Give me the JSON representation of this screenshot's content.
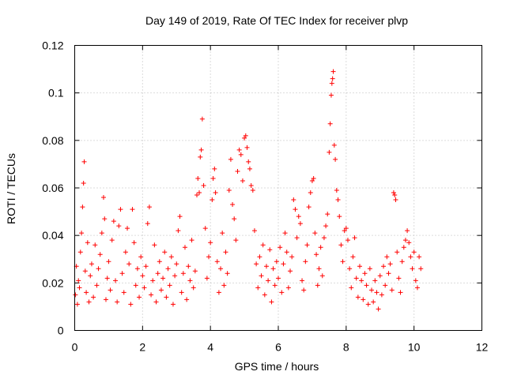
{
  "chart_data": {
    "type": "scatter",
    "title": "Day 149 of 2019, Rate Of TEC Index for receiver plvp",
    "xlabel": "GPS time / hours",
    "ylabel": "ROTI / TECUs",
    "xlim": [
      0,
      12
    ],
    "ylim": [
      0,
      0.12
    ],
    "grid": true,
    "marker": "plus",
    "color": "#ff0000",
    "x_ticks": [
      {
        "value": 0,
        "label": "0"
      },
      {
        "value": 2,
        "label": "2"
      },
      {
        "value": 4,
        "label": "4"
      },
      {
        "value": 6,
        "label": "6"
      },
      {
        "value": 8,
        "label": "8"
      },
      {
        "value": 10,
        "label": "10"
      },
      {
        "value": 12,
        "label": "12"
      }
    ],
    "y_ticks": [
      {
        "value": 0,
        "label": "0"
      },
      {
        "value": 0.02,
        "label": "0.02"
      },
      {
        "value": 0.04,
        "label": "0.04"
      },
      {
        "value": 0.06,
        "label": "0.06"
      },
      {
        "value": 0.08,
        "label": "0.08"
      },
      {
        "value": 0.1,
        "label": "0.1"
      },
      {
        "value": 0.12,
        "label": "0.12"
      }
    ],
    "series": [
      {
        "name": "ROTI",
        "points": [
          [
            0.02,
            0.015
          ],
          [
            0.05,
            0.027
          ],
          [
            0.08,
            0.011
          ],
          [
            0.11,
            0.021
          ],
          [
            0.14,
            0.018
          ],
          [
            0.17,
            0.033
          ],
          [
            0.2,
            0.041
          ],
          [
            0.23,
            0.052
          ],
          [
            0.26,
            0.062
          ],
          [
            0.28,
            0.071
          ],
          [
            0.31,
            0.025
          ],
          [
            0.34,
            0.016
          ],
          [
            0.38,
            0.037
          ],
          [
            0.42,
            0.012
          ],
          [
            0.46,
            0.023
          ],
          [
            0.5,
            0.028
          ],
          [
            0.55,
            0.014
          ],
          [
            0.6,
            0.036
          ],
          [
            0.65,
            0.019
          ],
          [
            0.7,
            0.026
          ],
          [
            0.75,
            0.032
          ],
          [
            0.8,
            0.041
          ],
          [
            0.85,
            0.056
          ],
          [
            0.88,
            0.047
          ],
          [
            0.92,
            0.013
          ],
          [
            0.96,
            0.022
          ],
          [
            1.0,
            0.029
          ],
          [
            1.05,
            0.017
          ],
          [
            1.1,
            0.038
          ],
          [
            1.15,
            0.046
          ],
          [
            1.2,
            0.021
          ],
          [
            1.25,
            0.012
          ],
          [
            1.3,
            0.044
          ],
          [
            1.35,
            0.051
          ],
          [
            1.4,
            0.024
          ],
          [
            1.45,
            0.016
          ],
          [
            1.5,
            0.033
          ],
          [
            1.55,
            0.043
          ],
          [
            1.6,
            0.028
          ],
          [
            1.65,
            0.011
          ],
          [
            1.7,
            0.051
          ],
          [
            1.75,
            0.037
          ],
          [
            1.8,
            0.019
          ],
          [
            1.85,
            0.026
          ],
          [
            1.9,
            0.014
          ],
          [
            1.95,
            0.031
          ],
          [
            2.0,
            0.023
          ],
          [
            2.05,
            0.018
          ],
          [
            2.1,
            0.027
          ],
          [
            2.15,
            0.045
          ],
          [
            2.2,
            0.052
          ],
          [
            2.25,
            0.015
          ],
          [
            2.3,
            0.021
          ],
          [
            2.35,
            0.036
          ],
          [
            2.4,
            0.012
          ],
          [
            2.45,
            0.024
          ],
          [
            2.5,
            0.029
          ],
          [
            2.55,
            0.017
          ],
          [
            2.6,
            0.022
          ],
          [
            2.65,
            0.033
          ],
          [
            2.7,
            0.014
          ],
          [
            2.75,
            0.026
          ],
          [
            2.8,
            0.019
          ],
          [
            2.85,
            0.031
          ],
          [
            2.9,
            0.011
          ],
          [
            2.95,
            0.023
          ],
          [
            3.0,
            0.028
          ],
          [
            3.05,
            0.042
          ],
          [
            3.1,
            0.048
          ],
          [
            3.15,
            0.016
          ],
          [
            3.2,
            0.024
          ],
          [
            3.25,
            0.035
          ],
          [
            3.3,
            0.013
          ],
          [
            3.35,
            0.027
          ],
          [
            3.4,
            0.021
          ],
          [
            3.45,
            0.038
          ],
          [
            3.5,
            0.018
          ],
          [
            3.55,
            0.025
          ],
          [
            3.6,
            0.057
          ],
          [
            3.63,
            0.064
          ],
          [
            3.67,
            0.058
          ],
          [
            3.7,
            0.073
          ],
          [
            3.73,
            0.076
          ],
          [
            3.76,
            0.089
          ],
          [
            3.8,
            0.061
          ],
          [
            3.85,
            0.043
          ],
          [
            3.9,
            0.022
          ],
          [
            3.95,
            0.031
          ],
          [
            4.0,
            0.037
          ],
          [
            4.05,
            0.055
          ],
          [
            4.08,
            0.064
          ],
          [
            4.12,
            0.068
          ],
          [
            4.15,
            0.058
          ],
          [
            4.2,
            0.029
          ],
          [
            4.25,
            0.016
          ],
          [
            4.3,
            0.026
          ],
          [
            4.35,
            0.041
          ],
          [
            4.4,
            0.019
          ],
          [
            4.45,
            0.033
          ],
          [
            4.5,
            0.024
          ],
          [
            4.55,
            0.059
          ],
          [
            4.6,
            0.072
          ],
          [
            4.65,
            0.053
          ],
          [
            4.7,
            0.047
          ],
          [
            4.75,
            0.038
          ],
          [
            4.8,
            0.067
          ],
          [
            4.85,
            0.076
          ],
          [
            4.9,
            0.074
          ],
          [
            4.95,
            0.063
          ],
          [
            5.0,
            0.081
          ],
          [
            5.04,
            0.082
          ],
          [
            5.08,
            0.077
          ],
          [
            5.12,
            0.071
          ],
          [
            5.16,
            0.068
          ],
          [
            5.2,
            0.061
          ],
          [
            5.25,
            0.059
          ],
          [
            5.3,
            0.042
          ],
          [
            5.35,
            0.028
          ],
          [
            5.4,
            0.018
          ],
          [
            5.45,
            0.031
          ],
          [
            5.5,
            0.023
          ],
          [
            5.55,
            0.036
          ],
          [
            5.6,
            0.015
          ],
          [
            5.65,
            0.027
          ],
          [
            5.7,
            0.021
          ],
          [
            5.75,
            0.034
          ],
          [
            5.8,
            0.012
          ],
          [
            5.85,
            0.026
          ],
          [
            5.9,
            0.019
          ],
          [
            5.95,
            0.029
          ],
          [
            6.0,
            0.022
          ],
          [
            6.05,
            0.035
          ],
          [
            6.1,
            0.016
          ],
          [
            6.15,
            0.028
          ],
          [
            6.2,
            0.041
          ],
          [
            6.25,
            0.033
          ],
          [
            6.3,
            0.018
          ],
          [
            6.35,
            0.025
          ],
          [
            6.4,
            0.031
          ],
          [
            6.45,
            0.055
          ],
          [
            6.5,
            0.051
          ],
          [
            6.55,
            0.039
          ],
          [
            6.6,
            0.048
          ],
          [
            6.65,
            0.045
          ],
          [
            6.7,
            0.021
          ],
          [
            6.75,
            0.017
          ],
          [
            6.8,
            0.029
          ],
          [
            6.85,
            0.036
          ],
          [
            6.9,
            0.052
          ],
          [
            6.95,
            0.058
          ],
          [
            7.0,
            0.063
          ],
          [
            7.04,
            0.064
          ],
          [
            7.08,
            0.041
          ],
          [
            7.12,
            0.032
          ],
          [
            7.16,
            0.019
          ],
          [
            7.2,
            0.026
          ],
          [
            7.25,
            0.035
          ],
          [
            7.3,
            0.023
          ],
          [
            7.35,
            0.039
          ],
          [
            7.4,
            0.044
          ],
          [
            7.45,
            0.049
          ],
          [
            7.5,
            0.075
          ],
          [
            7.53,
            0.087
          ],
          [
            7.56,
            0.099
          ],
          [
            7.58,
            0.104
          ],
          [
            7.6,
            0.106
          ],
          [
            7.62,
            0.109
          ],
          [
            7.65,
            0.078
          ],
          [
            7.68,
            0.072
          ],
          [
            7.72,
            0.059
          ],
          [
            7.76,
            0.055
          ],
          [
            7.8,
            0.048
          ],
          [
            7.85,
            0.036
          ],
          [
            7.9,
            0.029
          ],
          [
            7.95,
            0.042
          ],
          [
            8.0,
            0.043
          ],
          [
            8.05,
            0.038
          ],
          [
            8.1,
            0.026
          ],
          [
            8.15,
            0.018
          ],
          [
            8.2,
            0.031
          ],
          [
            8.25,
            0.039
          ],
          [
            8.3,
            0.022
          ],
          [
            8.35,
            0.014
          ],
          [
            8.4,
            0.027
          ],
          [
            8.45,
            0.021
          ],
          [
            8.5,
            0.013
          ],
          [
            8.55,
            0.024
          ],
          [
            8.6,
            0.019
          ],
          [
            8.65,
            0.011
          ],
          [
            8.7,
            0.026
          ],
          [
            8.75,
            0.017
          ],
          [
            8.8,
            0.012
          ],
          [
            8.85,
            0.021
          ],
          [
            8.9,
            0.016
          ],
          [
            8.95,
            0.009
          ],
          [
            9.0,
            0.023
          ],
          [
            9.05,
            0.015
          ],
          [
            9.1,
            0.027
          ],
          [
            9.15,
            0.019
          ],
          [
            9.2,
            0.031
          ],
          [
            9.25,
            0.024
          ],
          [
            9.3,
            0.028
          ],
          [
            9.35,
            0.017
          ],
          [
            9.4,
            0.058
          ],
          [
            9.43,
            0.057
          ],
          [
            9.46,
            0.055
          ],
          [
            9.5,
            0.033
          ],
          [
            9.55,
            0.022
          ],
          [
            9.6,
            0.016
          ],
          [
            9.65,
            0.029
          ],
          [
            9.7,
            0.035
          ],
          [
            9.75,
            0.038
          ],
          [
            9.8,
            0.042
          ],
          [
            9.85,
            0.037
          ],
          [
            9.9,
            0.031
          ],
          [
            9.95,
            0.026
          ],
          [
            10.0,
            0.033
          ],
          [
            10.05,
            0.021
          ],
          [
            10.1,
            0.018
          ],
          [
            10.15,
            0.031
          ],
          [
            10.2,
            0.026
          ]
        ]
      }
    ]
  }
}
